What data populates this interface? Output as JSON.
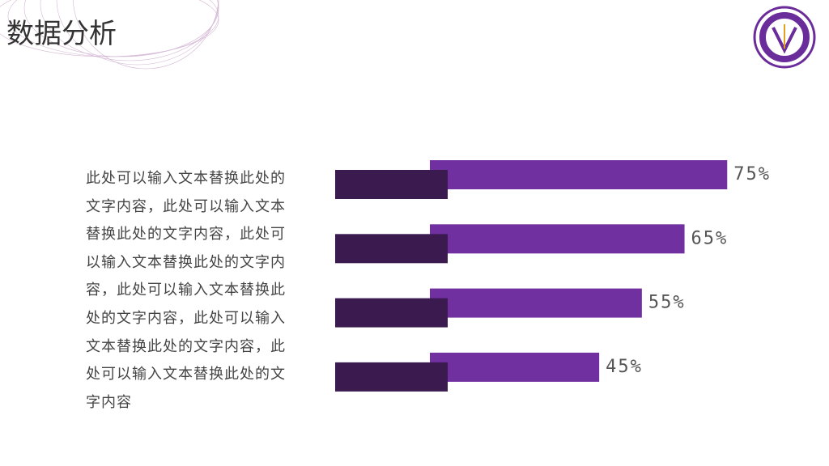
{
  "header": {
    "title": "数据分析"
  },
  "body": {
    "text": "此处可以输入文本替换此处的文字内容，此处可以输入文本替换此处的文字内容，此处可以输入文本替换此处的文字内容，此处可以输入文本替换此处的文字内容，此处可以输入文本替换此处的文字内容，此处可以输入文本替换此处的文字内容"
  },
  "chart_data": {
    "type": "bar",
    "orientation": "horizontal",
    "values": [
      75,
      65,
      55,
      45
    ],
    "value_labels": [
      "75%",
      "65%",
      "55%",
      "45%"
    ],
    "color": "#7030a0"
  }
}
